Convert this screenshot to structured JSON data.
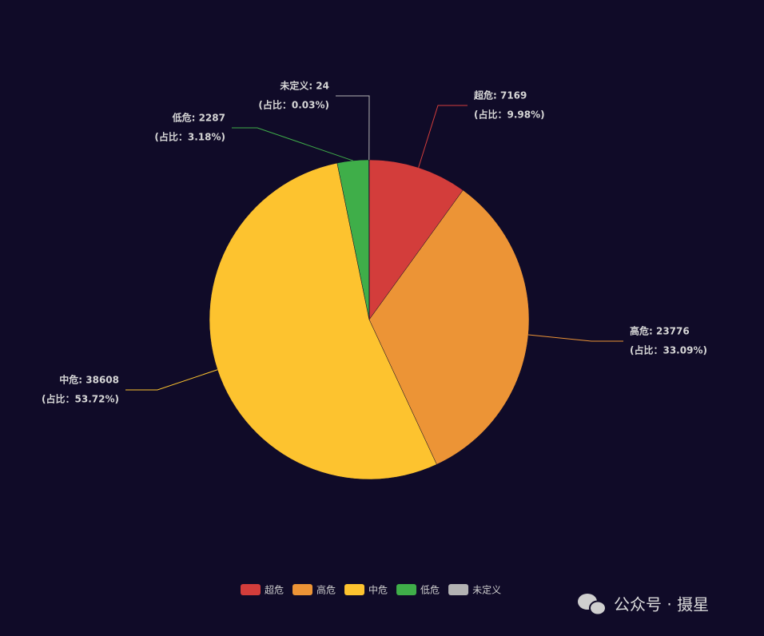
{
  "chart_data": {
    "type": "pie",
    "categories": [
      "超危",
      "高危",
      "中危",
      "低危",
      "未定义"
    ],
    "values": [
      7169,
      23776,
      38608,
      2287,
      24
    ],
    "value_labels": [
      "超危: 7169",
      "高危: 23776",
      "中危: 38608",
      "低危: 2287",
      "未定义: 24"
    ],
    "percent_labels": [
      "(占比：9.98%)",
      "(占比：33.09%)",
      "(占比：53.72%)",
      "(占比：3.18%)",
      "(占比：0.03%)"
    ],
    "colors": [
      "#d33d3b",
      "#ec9436",
      "#fdc32f",
      "#3fae49",
      "#b3b3b3"
    ],
    "legend": "bottom"
  },
  "watermark": "公众号 · 摄星"
}
